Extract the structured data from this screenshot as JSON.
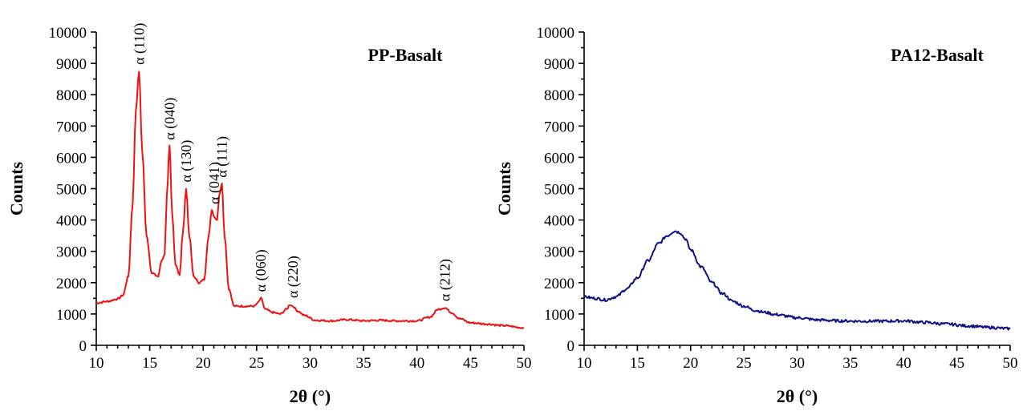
{
  "chart_data": [
    {
      "type": "line",
      "title": "PP-Basalt",
      "xlabel": "2θ (°)",
      "ylabel": "Counts",
      "xlim": [
        10,
        50
      ],
      "ylim": [
        0,
        10000
      ],
      "xticks": [
        10,
        15,
        20,
        25,
        30,
        35,
        40,
        45,
        50
      ],
      "yticks": [
        0,
        1000,
        2000,
        3000,
        4000,
        5000,
        6000,
        7000,
        8000,
        9000,
        10000
      ],
      "grid": false,
      "series": [
        {
          "color": "#ee1111",
          "x": [
            10,
            11,
            12,
            12.5,
            13,
            13.4,
            13.7,
            14.0,
            14.3,
            14.7,
            15.2,
            15.8,
            16.1,
            16.4,
            16.6,
            16.85,
            17.1,
            17.4,
            17.8,
            18.1,
            18.4,
            18.7,
            19.1,
            19.6,
            20.1,
            20.5,
            20.8,
            21.05,
            21.3,
            21.5,
            21.75,
            22.0,
            22.4,
            22.9,
            23.5,
            24.2,
            24.8,
            25.1,
            25.4,
            25.8,
            26.5,
            27.2,
            27.8,
            28.1,
            28.4,
            28.8,
            29.5,
            30.5,
            32,
            33.5,
            35,
            36.5,
            38,
            40,
            41.2,
            42.0,
            42.6,
            43.2,
            44.0,
            45,
            46.5,
            48,
            50
          ],
          "y": [
            1350,
            1400,
            1480,
            1600,
            2200,
            4500,
            7500,
            8750,
            6200,
            3500,
            2300,
            2200,
            2700,
            2900,
            4800,
            6350,
            4200,
            2600,
            2250,
            3600,
            5000,
            3500,
            2200,
            2000,
            2100,
            3500,
            4300,
            4100,
            4000,
            4800,
            5150,
            3500,
            1800,
            1250,
            1250,
            1250,
            1250,
            1350,
            1500,
            1150,
            1050,
            1000,
            1150,
            1300,
            1250,
            1100,
            950,
            800,
            780,
            820,
            780,
            800,
            780,
            780,
            900,
            1150,
            1200,
            1050,
            850,
            720,
            680,
            630,
            560
          ]
        }
      ],
      "annotations": [
        {
          "text": "α (110)",
          "x": 14.0,
          "y": 8750
        },
        {
          "text": "α (040)",
          "x": 16.85,
          "y": 6350
        },
        {
          "text": "α (130)",
          "x": 18.4,
          "y": 5000
        },
        {
          "text": "α (041)",
          "x": 21.05,
          "y": 4300
        },
        {
          "text": "α (111)",
          "x": 21.75,
          "y": 5150
        },
        {
          "text": "α (060)",
          "x": 25.4,
          "y": 1500
        },
        {
          "text": "α (220)",
          "x": 28.4,
          "y": 1300
        },
        {
          "text": "α (212)",
          "x": 42.6,
          "y": 1200
        }
      ]
    },
    {
      "type": "line",
      "title": "PA12-Basalt",
      "xlabel": "2θ (°)",
      "ylabel": "Counts",
      "xlim": [
        10,
        50
      ],
      "ylim": [
        0,
        10000
      ],
      "xticks": [
        10,
        15,
        20,
        25,
        30,
        35,
        40,
        45,
        50
      ],
      "yticks": [
        0,
        1000,
        2000,
        3000,
        4000,
        5000,
        6000,
        7000,
        8000,
        9000,
        10000
      ],
      "grid": false,
      "series": [
        {
          "color": "#101080",
          "x": [
            10,
            11,
            12,
            13,
            14,
            15,
            16,
            17,
            17.8,
            18.5,
            19.0,
            19.5,
            20,
            21,
            22,
            23,
            24,
            25,
            26,
            27,
            28,
            30,
            32,
            34,
            36,
            38,
            40,
            42,
            44,
            46,
            48,
            50
          ],
          "y": [
            1550,
            1500,
            1450,
            1550,
            1800,
            2150,
            2700,
            3250,
            3500,
            3650,
            3600,
            3400,
            3050,
            2500,
            2000,
            1650,
            1400,
            1250,
            1120,
            1050,
            980,
            880,
            810,
            780,
            770,
            770,
            780,
            730,
            680,
            620,
            570,
            530
          ]
        }
      ],
      "annotations": []
    }
  ]
}
